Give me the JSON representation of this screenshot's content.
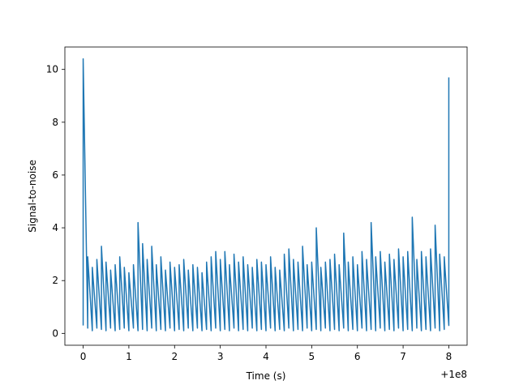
{
  "chart_data": {
    "type": "line",
    "title": "",
    "xlabel": "Time (s)",
    "ylabel": "Signal-to-noise",
    "x_offset_label": "+1e8",
    "xlim": [
      -0.4,
      8.4
    ],
    "ylim": [
      -0.45,
      10.85
    ],
    "xticks": [
      0,
      1,
      2,
      3,
      4,
      5,
      6,
      7,
      8
    ],
    "yticks": [
      0,
      2,
      4,
      6,
      8,
      10
    ],
    "grid": false,
    "legend": "none",
    "color": "#1f77b4",
    "series": [
      {
        "x": [
          0.0,
          0.1,
          0.2,
          0.3,
          0.4,
          0.5,
          0.6,
          0.7,
          0.8,
          0.9,
          1.0,
          1.1,
          1.2,
          1.3,
          1.4,
          1.5,
          1.6,
          1.7,
          1.8,
          1.9,
          2.0,
          2.1,
          2.2,
          2.3,
          2.4,
          2.5,
          2.6,
          2.7,
          2.8,
          2.9,
          3.0,
          3.1,
          3.2,
          3.3,
          3.4,
          3.5,
          3.6,
          3.7,
          3.8,
          3.9,
          4.0,
          4.1,
          4.2,
          4.3,
          4.4,
          4.5,
          4.6,
          4.7,
          4.8,
          4.9,
          5.0,
          5.1,
          5.2,
          5.3,
          5.4,
          5.5,
          5.6,
          5.7,
          5.8,
          5.9,
          6.0,
          6.1,
          6.2,
          6.3,
          6.4,
          6.5,
          6.6,
          6.7,
          6.8,
          6.9,
          7.0,
          7.1,
          7.2,
          7.3,
          7.4,
          7.5,
          7.6,
          7.7,
          7.8,
          7.9,
          8.0
        ],
        "y_min": [
          0.3,
          0.2,
          0.1,
          0.2,
          0.15,
          0.1,
          0.2,
          0.1,
          0.15,
          0.2,
          0.1,
          0.2,
          0.1,
          0.15,
          0.1,
          0.2,
          0.1,
          0.15,
          0.1,
          0.2,
          0.1,
          0.15,
          0.1,
          0.2,
          0.1,
          0.2,
          0.1,
          0.15,
          0.1,
          0.2,
          0.1,
          0.15,
          0.1,
          0.2,
          0.1,
          0.15,
          0.1,
          0.2,
          0.1,
          0.15,
          0.1,
          0.2,
          0.1,
          0.15,
          0.1,
          0.2,
          0.1,
          0.15,
          0.1,
          0.2,
          0.1,
          0.15,
          0.1,
          0.2,
          0.1,
          0.15,
          0.1,
          0.2,
          0.1,
          0.15,
          0.1,
          0.2,
          0.1,
          0.15,
          0.1,
          0.2,
          0.1,
          0.15,
          0.1,
          0.2,
          0.1,
          0.15,
          0.1,
          0.2,
          0.1,
          0.15,
          0.1,
          0.2,
          0.1,
          0.15,
          0.3
        ],
        "y_max": [
          10.4,
          2.9,
          2.5,
          2.8,
          3.3,
          2.7,
          2.4,
          2.6,
          2.9,
          2.5,
          2.3,
          2.6,
          4.2,
          3.4,
          2.8,
          3.3,
          2.6,
          2.9,
          2.4,
          2.7,
          2.5,
          2.6,
          2.8,
          2.4,
          2.6,
          2.5,
          2.3,
          2.7,
          2.9,
          3.1,
          2.8,
          3.1,
          2.6,
          3.0,
          2.7,
          2.9,
          2.6,
          2.5,
          2.8,
          2.7,
          2.6,
          2.9,
          2.5,
          2.4,
          3.0,
          3.2,
          2.8,
          2.7,
          3.3,
          2.6,
          2.7,
          4.0,
          2.5,
          2.7,
          2.8,
          3.0,
          2.6,
          3.8,
          2.7,
          2.9,
          2.6,
          3.1,
          2.8,
          4.2,
          2.9,
          3.1,
          2.7,
          3.0,
          2.8,
          3.2,
          2.9,
          3.1,
          4.4,
          2.8,
          3.1,
          2.9,
          3.2,
          4.1,
          3.0,
          2.9,
          9.7
        ]
      }
    ]
  }
}
